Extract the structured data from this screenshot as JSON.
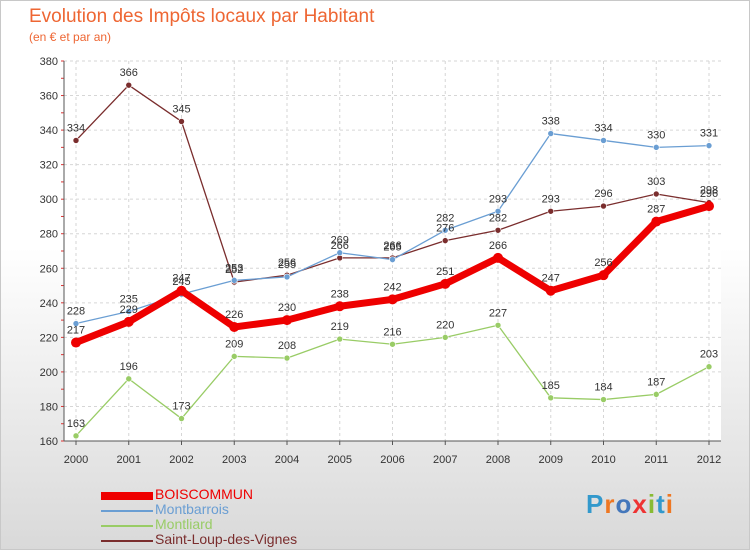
{
  "header": {
    "title": "Evolution des Impôts locaux par Habitant",
    "subtitle": "(en € et par an)"
  },
  "brand": {
    "text": "Proxiti",
    "colors": [
      "#3399cc",
      "#ee7722",
      "#4477bb",
      "#ee3333",
      "#88bb33",
      "#3399cc",
      "#ee7722"
    ]
  },
  "chart_data": {
    "type": "line",
    "title": "Evolution des Impôts locaux par Habitant",
    "subtitle": "(en € et par an)",
    "xlabel": "",
    "ylabel": "",
    "x": [
      "2000",
      "2001",
      "2002",
      "2003",
      "2004",
      "2005",
      "2006",
      "2007",
      "2008",
      "2009",
      "2010",
      "2011",
      "2012"
    ],
    "ylim": [
      160,
      380
    ],
    "yticks": [
      160,
      180,
      200,
      220,
      240,
      260,
      280,
      300,
      320,
      340,
      360,
      380
    ],
    "grid": true,
    "legend_position": "bottom-left",
    "series": [
      {
        "name": "BOISCOMMUN",
        "color": "#ee0000",
        "bold": true,
        "values": [
          217,
          229,
          247,
          226,
          230,
          238,
          242,
          251,
          266,
          247,
          256,
          287,
          296
        ],
        "labels": [
          "217",
          "229",
          "247",
          "226",
          "230",
          "238",
          "242",
          "251",
          "266",
          "247",
          "256",
          "287",
          "296"
        ]
      },
      {
        "name": "Montbarrois",
        "color": "#6a9ed3",
        "bold": false,
        "values": [
          228,
          235,
          245,
          253,
          255,
          269,
          265,
          282,
          293,
          338,
          334,
          330,
          331
        ],
        "labels": [
          "228",
          "235",
          "245",
          "253",
          "255",
          "269",
          "265",
          "282",
          "293",
          "338",
          "334",
          "330",
          "331"
        ]
      },
      {
        "name": "Montliard",
        "color": "#99cc66",
        "bold": false,
        "values": [
          163,
          196,
          173,
          209,
          208,
          219,
          216,
          220,
          227,
          185,
          184,
          187,
          203
        ],
        "labels": [
          "163",
          "196",
          "173",
          "209",
          "208",
          "219",
          "216",
          "220",
          "227",
          "185",
          "184",
          "187",
          "203"
        ]
      },
      {
        "name": "Saint-Loup-des-Vignes",
        "color": "#7a2d2d",
        "bold": false,
        "values": [
          334,
          366,
          345,
          252,
          256,
          266,
          266,
          276,
          282,
          293,
          296,
          303,
          298
        ],
        "labels": [
          "334",
          "366",
          "345",
          "252",
          "256",
          "266",
          "266",
          "276",
          "282",
          "293",
          "296",
          "303",
          "298"
        ]
      }
    ]
  }
}
